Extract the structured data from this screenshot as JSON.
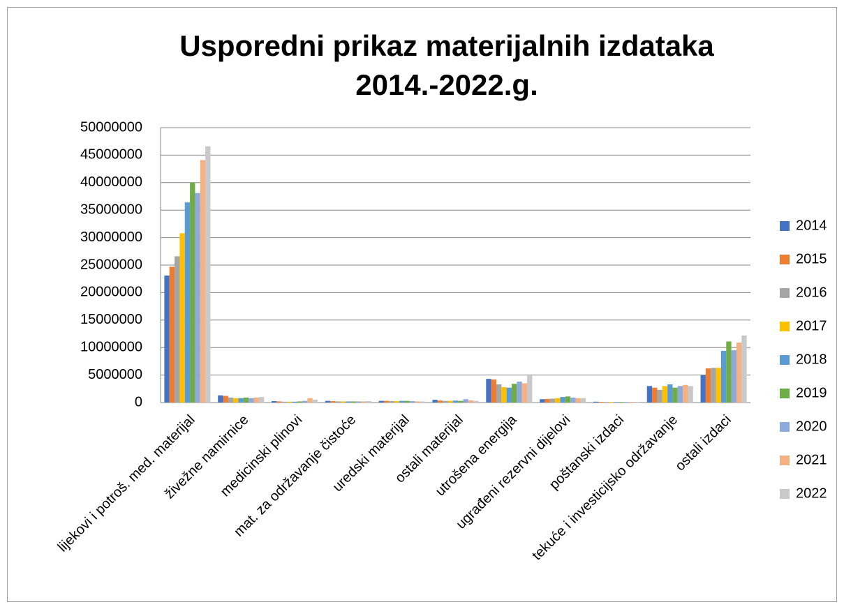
{
  "chart_data": {
    "type": "bar",
    "title": "Usporedni prikaz materijalnih izdataka 2014.-2022.g.",
    "categories": [
      "lijekovi i potroš. med. materijal",
      "živežne namirnice",
      "medicinski plinovi",
      "mat. za održavanje čistoće",
      "uredski materijal",
      "ostali materijal",
      "utrošena energija",
      "ugrađeni rezervni dijelovi",
      "poštanski izdaci",
      "tekuće i investicijsko održavanje",
      "ostali izdaci"
    ],
    "series": [
      {
        "name": "2014",
        "color": "#4472c4",
        "values": [
          23100000,
          1300000,
          250000,
          300000,
          300000,
          500000,
          4300000,
          600000,
          150000,
          3000000,
          5000000
        ]
      },
      {
        "name": "2015",
        "color": "#ed7d31",
        "values": [
          24700000,
          1200000,
          200000,
          250000,
          300000,
          350000,
          4200000,
          650000,
          120000,
          2700000,
          6200000
        ]
      },
      {
        "name": "2016",
        "color": "#a5a5a5",
        "values": [
          26600000,
          900000,
          150000,
          200000,
          250000,
          300000,
          3300000,
          700000,
          100000,
          2300000,
          6300000
        ]
      },
      {
        "name": "2017",
        "color": "#ffc000",
        "values": [
          30800000,
          800000,
          150000,
          200000,
          250000,
          300000,
          2800000,
          800000,
          100000,
          3000000,
          6300000
        ]
      },
      {
        "name": "2018",
        "color": "#5b9bd5",
        "values": [
          36400000,
          800000,
          150000,
          200000,
          300000,
          350000,
          2700000,
          1000000,
          100000,
          3300000,
          9400000
        ]
      },
      {
        "name": "2019",
        "color": "#70ad47",
        "values": [
          40000000,
          900000,
          200000,
          200000,
          300000,
          300000,
          3400000,
          1100000,
          100000,
          2700000,
          11100000
        ]
      },
      {
        "name": "2020",
        "color": "#8ea9db",
        "values": [
          38100000,
          800000,
          300000,
          200000,
          250000,
          600000,
          3800000,
          900000,
          100000,
          3000000,
          9500000
        ]
      },
      {
        "name": "2021",
        "color": "#f4b183",
        "values": [
          44100000,
          900000,
          800000,
          200000,
          200000,
          400000,
          3500000,
          800000,
          100000,
          3200000,
          10900000
        ]
      },
      {
        "name": "2022",
        "color": "#c9c9c9",
        "values": [
          46600000,
          1000000,
          500000,
          250000,
          200000,
          300000,
          4900000,
          800000,
          100000,
          3000000,
          12200000
        ]
      }
    ],
    "ylim": [
      0,
      50000000
    ],
    "yticks": [
      0,
      5000000,
      10000000,
      15000000,
      20000000,
      25000000,
      30000000,
      35000000,
      40000000,
      45000000,
      50000000
    ],
    "grid": true,
    "legend": "right"
  }
}
